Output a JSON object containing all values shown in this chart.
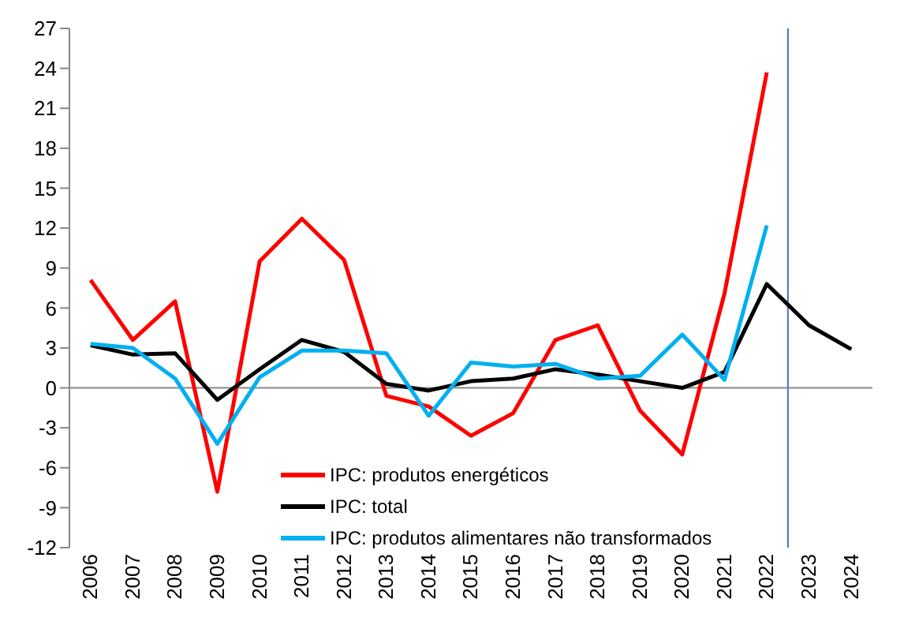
{
  "chart_data": {
    "type": "line",
    "x": [
      2006,
      2007,
      2008,
      2009,
      2010,
      2011,
      2012,
      2013,
      2014,
      2015,
      2016,
      2017,
      2018,
      2019,
      2020,
      2021,
      2022,
      2023,
      2024
    ],
    "xlim": [
      2005.5,
      2024.5
    ],
    "xticks": [
      2006,
      2007,
      2008,
      2009,
      2010,
      2011,
      2012,
      2013,
      2014,
      2015,
      2016,
      2017,
      2018,
      2019,
      2020,
      2021,
      2022,
      2023,
      2024
    ],
    "ylim": [
      -12,
      27
    ],
    "yticks": [
      -12,
      -9,
      -6,
      -3,
      0,
      3,
      6,
      9,
      12,
      15,
      18,
      21,
      24,
      27
    ],
    "series": [
      {
        "name": "IPC: produtos energéticos",
        "color": "#ff0000",
        "values": [
          8.1,
          3.6,
          6.5,
          -7.8,
          9.5,
          12.7,
          9.6,
          -0.6,
          -1.4,
          -3.6,
          -1.9,
          3.6,
          4.7,
          -1.7,
          -5.0,
          7.1,
          23.7,
          null,
          null
        ]
      },
      {
        "name": "IPC: total",
        "color": "#000000",
        "values": [
          3.2,
          2.5,
          2.6,
          -0.9,
          1.4,
          3.6,
          2.7,
          0.3,
          -0.2,
          0.5,
          0.7,
          1.4,
          1.0,
          0.5,
          0.0,
          1.2,
          7.8,
          4.7,
          2.9
        ]
      },
      {
        "name": "IPC: produtos alimentares não transformados",
        "color": "#00b0f0",
        "values": [
          3.3,
          3.0,
          0.7,
          -4.2,
          0.8,
          2.8,
          2.8,
          2.6,
          -2.1,
          1.9,
          1.6,
          1.8,
          0.7,
          0.9,
          4.0,
          0.6,
          12.2,
          null,
          null
        ]
      }
    ],
    "ref_lines": [
      {
        "axis": "x",
        "value": 2022.5,
        "color": "#4472c4"
      },
      {
        "axis": "y",
        "value": 0,
        "color": "#888888"
      }
    ],
    "grid": false,
    "legend": "bottom",
    "marker": "none",
    "line_style": "solid"
  }
}
